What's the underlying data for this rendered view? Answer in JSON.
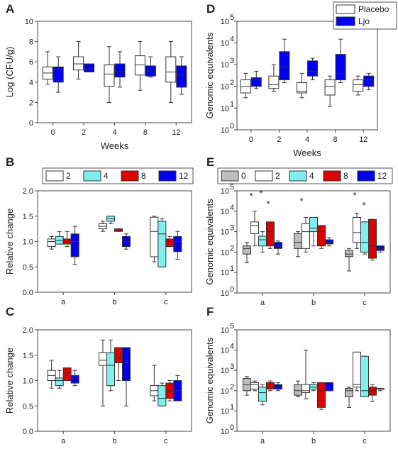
{
  "colors": {
    "placebo": "#ffffff",
    "ljo": "#0000ee",
    "w0": "#bdbdbd",
    "w2": "#ffffff",
    "w4": "#7ff0ee",
    "w8": "#dd0000",
    "w12": "#0000ee",
    "edge": "#333333"
  },
  "chart_data": [
    {
      "panel": "A",
      "type": "box",
      "xlabel": "Weeks",
      "ylabel": "Log (CFU/g)",
      "yscale": "linear",
      "ylim": [
        0,
        10
      ],
      "yticks": [
        "0",
        "2",
        "4",
        "6",
        "8",
        "10"
      ],
      "categories": [
        "0",
        "2",
        "4",
        "8",
        "12"
      ],
      "series": [
        {
          "name": "Placebo",
          "color": "placebo",
          "boxes": [
            [
              3.8,
              4.3,
              4.9,
              5.5,
              7.0
            ],
            [
              4.3,
              5.2,
              5.8,
              6.5,
              8.0
            ],
            [
              2.0,
              3.6,
              4.8,
              5.7,
              7.5
            ],
            [
              3.2,
              4.7,
              5.7,
              6.6,
              8.0
            ],
            [
              2.0,
              4.0,
              5.0,
              6.5,
              8.0
            ]
          ]
        },
        {
          "name": "Ljo",
          "color": "ljo",
          "boxes": [
            [
              3.0,
              4.0,
              5.2,
              5.5,
              6.5
            ],
            [
              5.0,
              5.0,
              5.3,
              5.8,
              5.8
            ],
            [
              3.5,
              4.5,
              5.0,
              5.8,
              7.0
            ],
            [
              4.5,
              4.6,
              5.1,
              5.6,
              6.5
            ],
            [
              2.8,
              3.5,
              4.7,
              5.6,
              6.5
            ]
          ]
        }
      ]
    },
    {
      "panel": "D",
      "type": "box",
      "xlabel": "Weeks",
      "ylabel": "Genomic equivalents",
      "yscale": "log",
      "ylim_exp": [
        0,
        5
      ],
      "yticks": [
        "10",
        "10",
        "10",
        "10",
        "10",
        "10"
      ],
      "ytick_exp": [
        "0",
        "1",
        "2",
        "3",
        "4",
        "5"
      ],
      "categories": [
        "0",
        "2",
        "4",
        "8",
        "12"
      ],
      "legend": [
        "Placebo",
        "Ljo"
      ],
      "series": [
        {
          "name": "Placebo",
          "color": "placebo",
          "boxes": [
            [
              30,
              50,
              100,
              200,
              400
            ],
            [
              60,
              80,
              120,
              300,
              1000
            ],
            [
              30,
              50,
              60,
              150,
              400
            ],
            [
              12,
              40,
              100,
              200,
              300
            ],
            [
              40,
              60,
              120,
              200,
              300
            ]
          ]
        },
        {
          "name": "Ljo",
          "color": "ljo",
          "boxes": [
            [
              80,
              100,
              200,
              250,
              500
            ],
            [
              150,
              200,
              800,
              4000,
              15000
            ],
            [
              200,
              300,
              500,
              1500,
              2000
            ],
            [
              150,
              200,
              400,
              3000,
              15000
            ],
            [
              70,
              100,
              200,
              300,
              400
            ]
          ]
        }
      ]
    },
    {
      "panel": "B",
      "type": "box",
      "ylabel": "Relative change",
      "yscale": "linear",
      "ylim": [
        0,
        2
      ],
      "yticks": [
        "0.0",
        "0.5",
        "1.0",
        "1.5",
        "2.0"
      ],
      "categories": [
        "a",
        "b",
        "c"
      ],
      "legend": [
        "2",
        "4",
        "8",
        "12"
      ],
      "series": [
        {
          "name": "2",
          "color": "w2",
          "boxes": [
            [
              0.85,
              0.9,
              1.0,
              1.05,
              1.1
            ],
            [
              1.2,
              1.25,
              1.3,
              1.35,
              1.4
            ],
            [
              0.6,
              0.7,
              1.2,
              1.48,
              1.5
            ]
          ]
        },
        {
          "name": "4",
          "color": "w4",
          "boxes": [
            [
              0.95,
              0.95,
              1.02,
              1.1,
              1.2
            ],
            [
              1.35,
              1.4,
              1.45,
              1.5,
              1.5
            ],
            [
              0.5,
              0.5,
              1.15,
              1.4,
              1.45
            ]
          ]
        },
        {
          "name": "8",
          "color": "w8",
          "boxes": [
            [
              0.9,
              0.95,
              1.0,
              1.05,
              1.2
            ],
            [
              1.2,
              1.2,
              1.22,
              1.25,
              1.25
            ],
            [
              0.9,
              0.9,
              1.0,
              1.05,
              1.1
            ]
          ]
        },
        {
          "name": "12",
          "color": "w12",
          "boxes": [
            [
              0.55,
              0.7,
              1.0,
              1.15,
              1.3
            ],
            [
              0.85,
              0.9,
              1.0,
              1.1,
              1.15
            ],
            [
              0.65,
              0.8,
              1.0,
              1.1,
              1.2
            ]
          ]
        }
      ]
    },
    {
      "panel": "E",
      "type": "box",
      "ylabel": "Genomic equivalents",
      "yscale": "log",
      "ylim_exp": [
        0,
        5
      ],
      "yticks": [
        "10",
        "10",
        "10",
        "10",
        "10",
        "10"
      ],
      "ytick_exp": [
        "0",
        "1",
        "2",
        "3",
        "4",
        "5"
      ],
      "categories": [
        "a",
        "b",
        "c"
      ],
      "legend": [
        "0",
        "2",
        "4",
        "8",
        "12"
      ],
      "series": [
        {
          "name": "0",
          "color": "w0",
          "boxes": [
            [
              30,
              80,
              150,
              200,
              300
            ],
            [
              60,
              150,
              300,
              800,
              1000
            ],
            [
              12,
              60,
              80,
              120,
              150
            ]
          ]
        },
        {
          "name": "2",
          "color": "w2",
          "boxes": [
            [
              200,
              800,
              2000,
              3000,
              10000
            ],
            [
              100,
              150,
              1000,
              2500,
              5000
            ],
            [
              150,
              300,
              900,
              5000,
              8000
            ]
          ]
        },
        {
          "name": "4",
          "color": "w4",
          "boxes": [
            [
              100,
              200,
              400,
              600,
              1000
            ],
            [
              200,
              1000,
              1500,
              5000,
              5000
            ],
            [
              80,
              100,
              300,
              3000,
              3000
            ]
          ]
        },
        {
          "name": "8",
          "color": "w8",
          "boxes": [
            [
              150,
              200,
              1000,
              3000,
              3000
            ],
            [
              150,
              200,
              1000,
              2000,
              2000
            ],
            [
              40,
              50,
              200,
              4000,
              4000
            ]
          ]
        },
        {
          "name": "12",
          "color": "w12",
          "boxes": [
            [
              80,
              150,
              200,
              300,
              350
            ],
            [
              200,
              250,
              300,
              400,
              500
            ],
            [
              100,
              120,
              150,
              200,
              200
            ]
          ]
        }
      ],
      "annotations": [
        "*",
        "*",
        "*",
        "*",
        "*",
        "*"
      ]
    },
    {
      "panel": "C",
      "type": "box",
      "ylabel": "Relative change",
      "yscale": "linear",
      "ylim": [
        0,
        2
      ],
      "yticks": [
        "0.0",
        "0.5",
        "1.0",
        "1.5",
        "2.0"
      ],
      "categories": [
        "a",
        "b",
        "c"
      ],
      "series": [
        {
          "name": "2",
          "color": "w2",
          "boxes": [
            [
              0.85,
              1.0,
              1.1,
              1.2,
              1.4
            ],
            [
              0.5,
              1.3,
              1.4,
              1.55,
              1.8
            ],
            [
              0.6,
              0.7,
              0.8,
              0.9,
              1.3
            ]
          ]
        },
        {
          "name": "4",
          "color": "w4",
          "boxes": [
            [
              0.85,
              0.9,
              1.0,
              1.05,
              1.2
            ],
            [
              0.8,
              0.9,
              1.3,
              1.55,
              1.8
            ],
            [
              0.5,
              0.5,
              0.65,
              0.9,
              0.95
            ]
          ]
        },
        {
          "name": "8",
          "color": "w8",
          "boxes": [
            [
              1.0,
              1.0,
              1.15,
              1.25,
              1.25
            ],
            [
              1.0,
              1.35,
              1.45,
              1.65,
              1.65
            ],
            [
              0.6,
              0.65,
              0.8,
              0.95,
              1.0
            ]
          ]
        },
        {
          "name": "12",
          "color": "w12",
          "boxes": [
            [
              0.9,
              0.95,
              1.05,
              1.1,
              1.2
            ],
            [
              0.5,
              1.0,
              1.35,
              1.65,
              1.65
            ],
            [
              0.6,
              0.6,
              0.8,
              1.0,
              1.1
            ]
          ]
        }
      ]
    },
    {
      "panel": "F",
      "type": "box",
      "ylabel": "Genomic equivalents",
      "yscale": "log",
      "ylim_exp": [
        0,
        5
      ],
      "yticks": [
        "10",
        "10",
        "10",
        "10",
        "10",
        "10"
      ],
      "ytick_exp": [
        "0",
        "1",
        "2",
        "3",
        "4",
        "5"
      ],
      "categories": [
        "a",
        "b",
        "c"
      ],
      "series": [
        {
          "name": "0",
          "color": "w0",
          "boxes": [
            [
              60,
              100,
              200,
              400,
              500
            ],
            [
              50,
              60,
              100,
              200,
              300
            ],
            [
              15,
              50,
              100,
              130,
              150
            ]
          ]
        },
        {
          "name": "2",
          "color": "w2",
          "boxes": [
            [
              100,
              120,
              200,
              250,
              300
            ],
            [
              40,
              80,
              100,
              200,
              10000
            ],
            [
              100,
              150,
              200,
              8000,
              8000
            ]
          ]
        },
        {
          "name": "4",
          "color": "w4",
          "boxes": [
            [
              20,
              30,
              80,
              150,
              200
            ],
            [
              100,
              120,
              150,
              200,
              250
            ],
            [
              50,
              50,
              100,
              5000,
              5000
            ]
          ]
        },
        {
          "name": "8",
          "color": "w8",
          "boxes": [
            [
              100,
              120,
              150,
              250,
              300
            ],
            [
              12,
              15,
              100,
              250,
              250
            ],
            [
              30,
              60,
              100,
              150,
              200
            ]
          ]
        },
        {
          "name": "12",
          "color": "w12",
          "boxes": [
            [
              100,
              120,
              150,
              200,
              250
            ],
            [
              100,
              100,
              100,
              250,
              250
            ],
            [
              100,
              120,
              130,
              130,
              130
            ]
          ]
        }
      ]
    }
  ]
}
